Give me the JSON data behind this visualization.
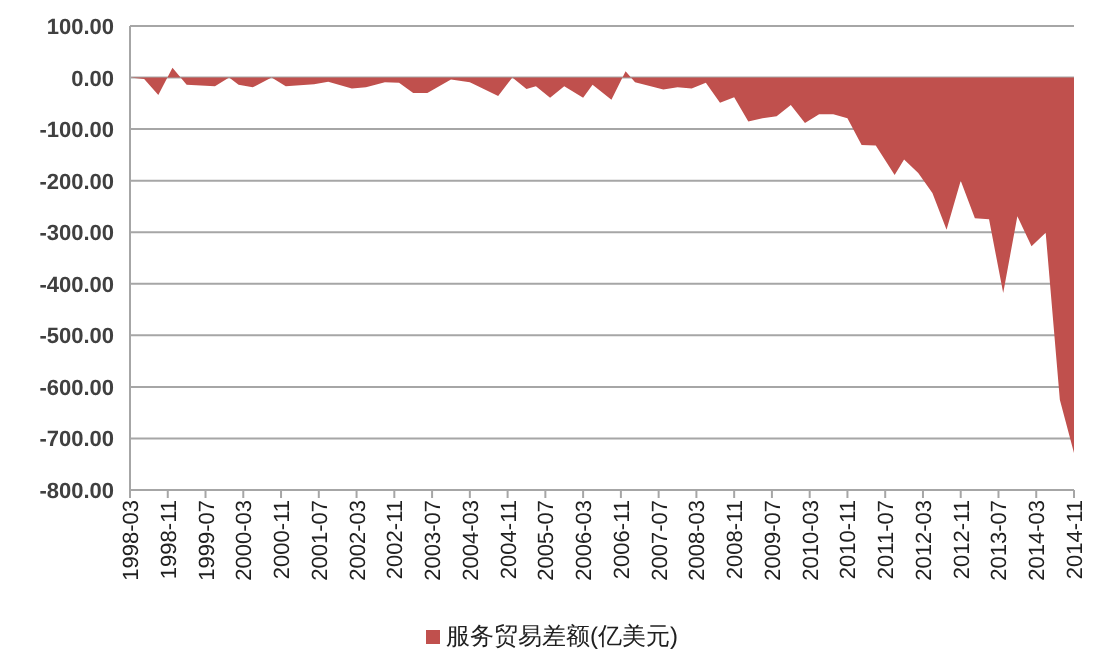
{
  "chart_data": {
    "type": "area",
    "x": [
      "1998-03",
      "1998-06",
      "1998-09",
      "1998-12",
      "1999-03",
      "1999-09",
      "1999-12",
      "2000-02",
      "2000-05",
      "2000-09",
      "2000-12",
      "2001-06",
      "2001-09",
      "2002-02",
      "2002-05",
      "2002-09",
      "2002-12",
      "2003-03",
      "2003-06",
      "2003-11",
      "2004-03",
      "2004-09",
      "2004-12",
      "2005-03",
      "2005-05",
      "2005-08",
      "2005-11",
      "2006-03",
      "2006-05",
      "2006-09",
      "2006-12",
      "2007-02",
      "2007-08",
      "2007-11",
      "2008-02",
      "2008-05",
      "2008-08",
      "2008-11",
      "2009-02",
      "2009-05",
      "2009-08",
      "2009-11",
      "2010-02",
      "2010-05",
      "2010-08",
      "2010-11",
      "2011-02",
      "2011-05",
      "2011-09",
      "2011-11",
      "2012-02",
      "2012-05",
      "2012-08",
      "2012-11",
      "2013-02",
      "2013-05",
      "2013-08",
      "2013-11",
      "2014-02",
      "2014-05",
      "2014-08",
      "2014-11"
    ],
    "series": [
      {
        "name": "服务贸易差额(亿美元)",
        "color": "#c0504d",
        "values": [
          0,
          -3,
          -34,
          19,
          -14,
          -17,
          0,
          -14,
          -19,
          0,
          -17,
          -13,
          -8,
          -21,
          -19,
          -9,
          -10,
          -30,
          -30,
          -4,
          -9,
          -36,
          0,
          -22,
          -17,
          -39,
          -17,
          -39,
          -14,
          -43,
          12,
          -9,
          -23,
          -19,
          -21,
          -10,
          -49,
          -38,
          -85,
          -79,
          -75,
          -53,
          -88,
          -71,
          -71,
          -79,
          -131,
          -132,
          -189,
          -159,
          -185,
          -224,
          -295,
          -200,
          -273,
          -275,
          -418,
          -269,
          -327,
          -301,
          -625,
          -728
        ]
      }
    ],
    "xlim": [
      "1998-03",
      "2014-11"
    ],
    "xticks": [
      "1998-03",
      "1998-11",
      "1999-07",
      "2000-03",
      "2000-11",
      "2001-07",
      "2002-03",
      "2002-11",
      "2003-07",
      "2004-03",
      "2004-11",
      "2005-07",
      "2006-03",
      "2006-11",
      "2007-07",
      "2008-03",
      "2008-11",
      "2009-07",
      "2010-03",
      "2010-11",
      "2011-07",
      "2012-03",
      "2012-11",
      "2013-07",
      "2014-03",
      "2014-11"
    ],
    "ylim": [
      -800,
      100
    ],
    "yticks": [
      {
        "value": 100,
        "label": "100.00"
      },
      {
        "value": 0,
        "label": "0.00"
      },
      {
        "value": -100,
        "label": "-100.00"
      },
      {
        "value": -200,
        "label": "-200.00"
      },
      {
        "value": -300,
        "label": "-300.00"
      },
      {
        "value": -400,
        "label": "-400.00"
      },
      {
        "value": -500,
        "label": "-500.00"
      },
      {
        "value": -600,
        "label": "-600.00"
      },
      {
        "value": -700,
        "label": "-700.00"
      },
      {
        "value": -800,
        "label": "-800.00"
      }
    ],
    "grid": "y",
    "legend": "bottom"
  }
}
